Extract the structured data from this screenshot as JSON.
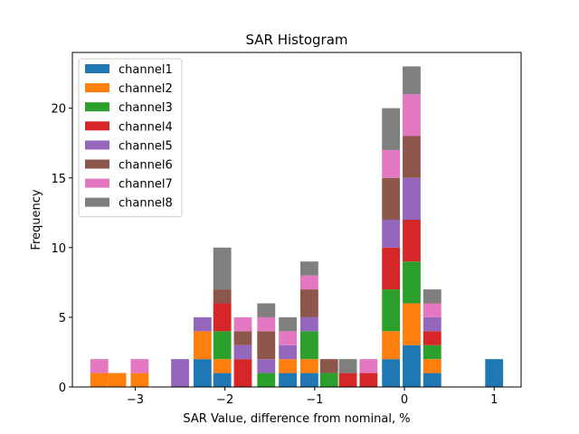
{
  "chart_data": {
    "type": "bar",
    "stacked": true,
    "title": "SAR Histogram",
    "xlabel": "SAR Value, difference from nominal, %",
    "ylabel": "Frequency",
    "xlim": [
      -3.7,
      1.3
    ],
    "ylim": [
      0,
      24
    ],
    "bar_width": 0.2,
    "x": [
      -3.4,
      -3.2,
      -2.95,
      -2.5,
      -2.25,
      -2.03,
      -1.8,
      -1.54,
      -1.3,
      -1.06,
      -0.84,
      -0.63,
      -0.4,
      -0.15,
      0.08,
      0.31,
      1.0
    ],
    "xticks": [
      -3,
      -2,
      -1,
      0,
      1
    ],
    "xtick_labels": [
      "−3",
      "−2",
      "−1",
      "0",
      "1"
    ],
    "yticks": [
      0,
      5,
      10,
      15,
      20
    ],
    "yticks_labels": [
      "0",
      "5",
      "10",
      "15",
      "20"
    ],
    "legend_location": "top-left",
    "series": [
      {
        "name": "channel1",
        "color": "#1f77b4",
        "values": [
          0,
          0,
          0,
          0,
          2,
          1,
          0,
          0,
          1,
          1,
          0,
          0,
          0,
          2,
          3,
          1,
          2
        ]
      },
      {
        "name": "channel2",
        "color": "#ff7f0e",
        "values": [
          1,
          1,
          1,
          0,
          2,
          1,
          0,
          0,
          1,
          1,
          0,
          0,
          0,
          2,
          3,
          1,
          0
        ]
      },
      {
        "name": "channel3",
        "color": "#2ca02c",
        "values": [
          0,
          0,
          0,
          0,
          0,
          2,
          0,
          1,
          0,
          2,
          1,
          0,
          0,
          3,
          3,
          1,
          0
        ]
      },
      {
        "name": "channel4",
        "color": "#d62728",
        "values": [
          0,
          0,
          0,
          0,
          0,
          2,
          2,
          0,
          0,
          0,
          0,
          1,
          1,
          3,
          3,
          1,
          0
        ]
      },
      {
        "name": "channel5",
        "color": "#9467bd",
        "values": [
          0,
          0,
          0,
          2,
          1,
          0,
          1,
          1,
          1,
          1,
          0,
          0,
          0,
          2,
          3,
          1,
          0
        ]
      },
      {
        "name": "channel6",
        "color": "#8c564b",
        "values": [
          0,
          0,
          0,
          0,
          0,
          1,
          1,
          2,
          0,
          2,
          1,
          0,
          0,
          3,
          3,
          0,
          0
        ]
      },
      {
        "name": "channel7",
        "color": "#e377c2",
        "values": [
          1,
          0,
          1,
          0,
          0,
          0,
          1,
          1,
          1,
          1,
          0,
          0,
          1,
          2,
          3,
          1,
          0
        ]
      },
      {
        "name": "channel8",
        "color": "#7f7f7f",
        "values": [
          0,
          0,
          0,
          0,
          0,
          3,
          0,
          1,
          1,
          1,
          0,
          1,
          0,
          3,
          2,
          1,
          0
        ]
      }
    ]
  }
}
